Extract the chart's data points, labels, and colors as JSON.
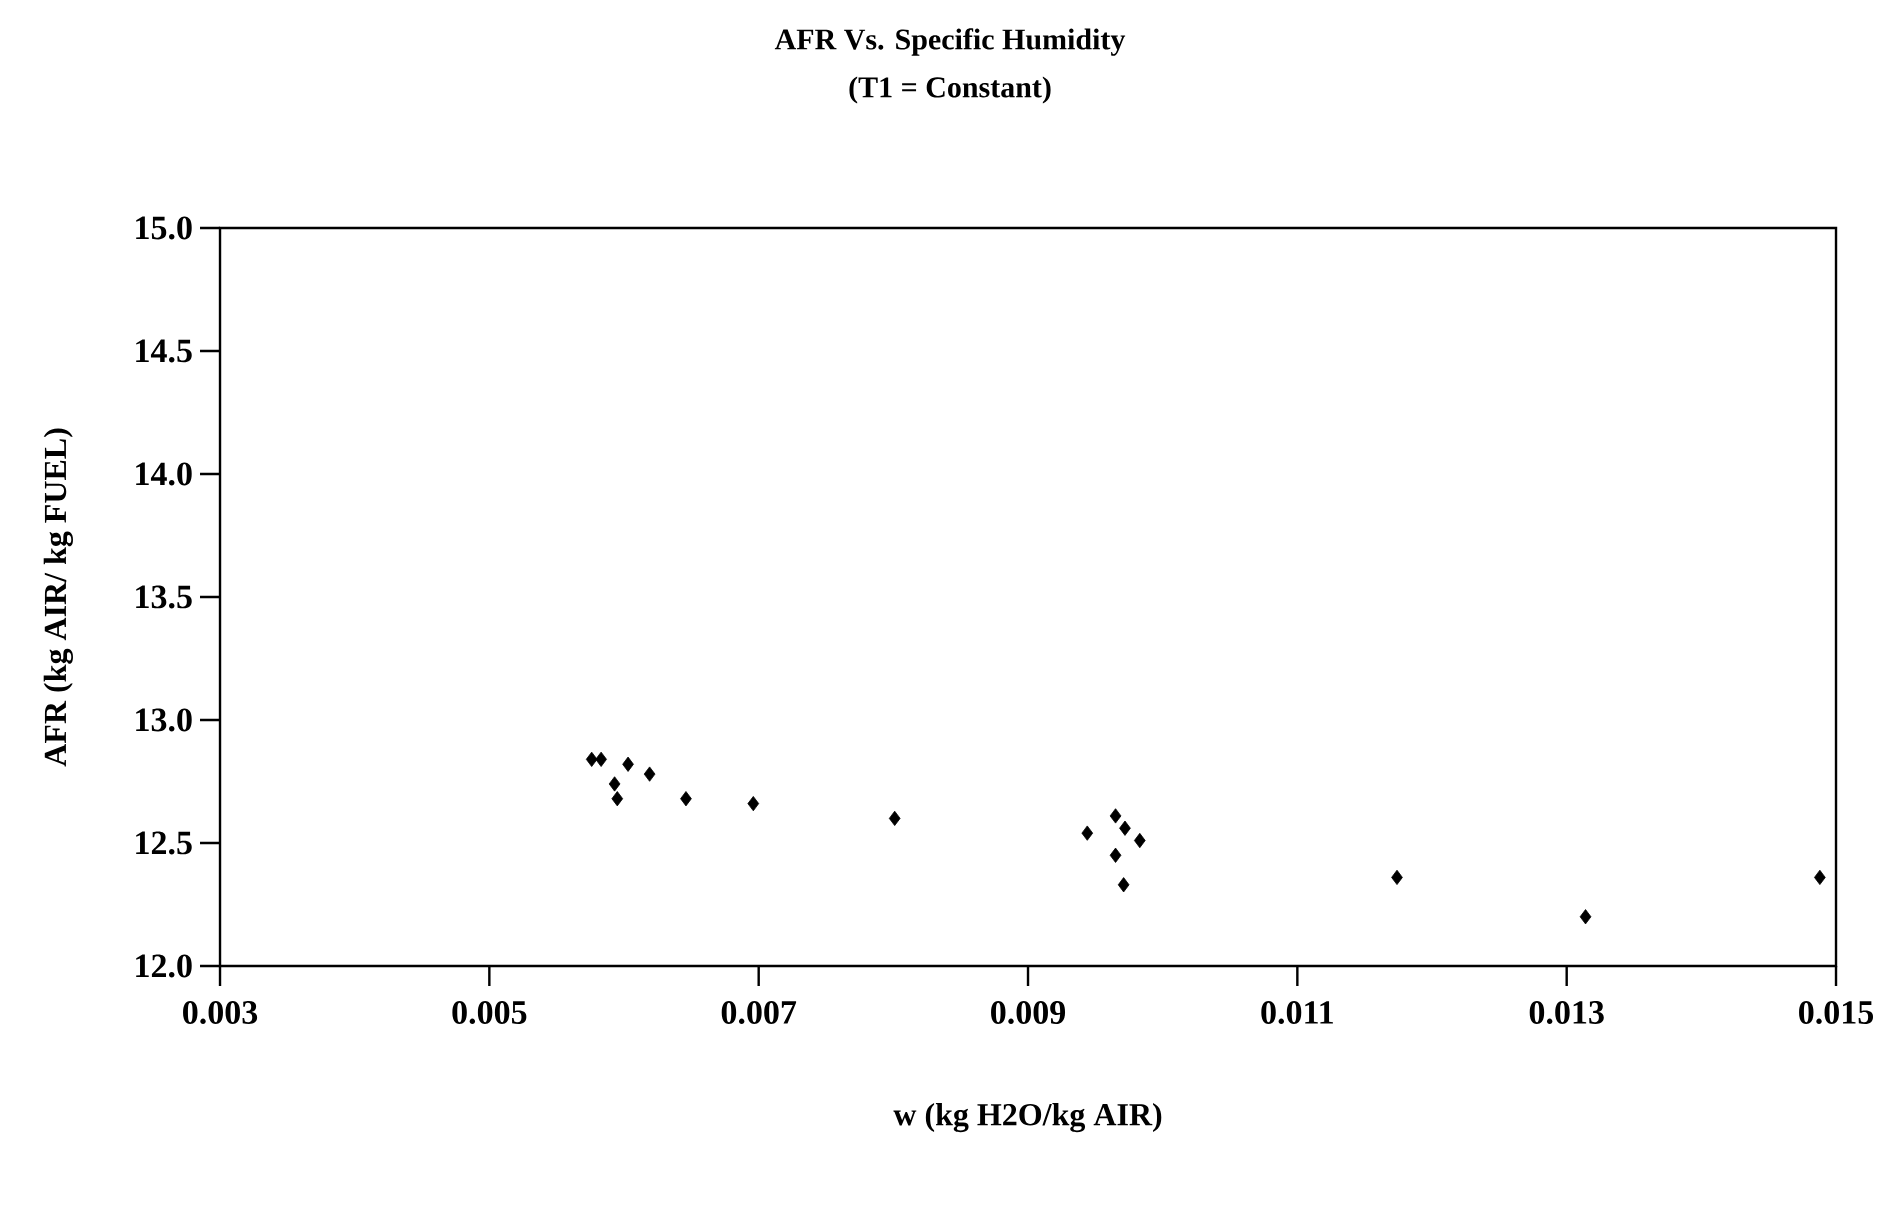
{
  "chart_data": {
    "type": "scatter",
    "title": "AFR Vs. Specific Humidity",
    "subtitle": "(T1 = Constant)",
    "xlabel": "w (kg H2O/kg AIR)",
    "ylabel": "AFR (kg AIR/ kg FUEL)",
    "xlim": [
      0.003,
      0.015
    ],
    "xticks": [
      0.003,
      0.005,
      0.007,
      0.009,
      0.011,
      0.013,
      0.015
    ],
    "ylim": [
      12.0,
      15.0
    ],
    "yticks": [
      {
        "value": 12.0,
        "label": "12.0"
      },
      {
        "value": 12.5,
        "label": "12.5"
      },
      {
        "value": 13.0,
        "label": "13.0"
      },
      {
        "value": 13.5,
        "label": "13.5"
      },
      {
        "value": 14.0,
        "label": "14.0"
      },
      {
        "value": 14.5,
        "label": "14.5"
      },
      {
        "value": 15.0,
        "label": "15.0"
      }
    ],
    "marker": "diamond",
    "grid": false,
    "series": [
      {
        "color": "#000000",
        "x": [
          0.00576,
          0.00583,
          0.00603,
          0.00593,
          0.00595,
          0.00619,
          0.00646,
          0.00696,
          0.00801,
          0.00944,
          0.00965,
          0.00972,
          0.00983,
          0.00965,
          0.00971,
          0.01174,
          0.01314,
          0.01488
        ],
        "values": [
          12.84,
          12.84,
          12.82,
          12.74,
          12.68,
          12.78,
          12.68,
          12.66,
          12.6,
          12.54,
          12.61,
          12.56,
          12.51,
          12.45,
          12.33,
          12.36,
          12.2,
          12.36
        ]
      }
    ]
  }
}
